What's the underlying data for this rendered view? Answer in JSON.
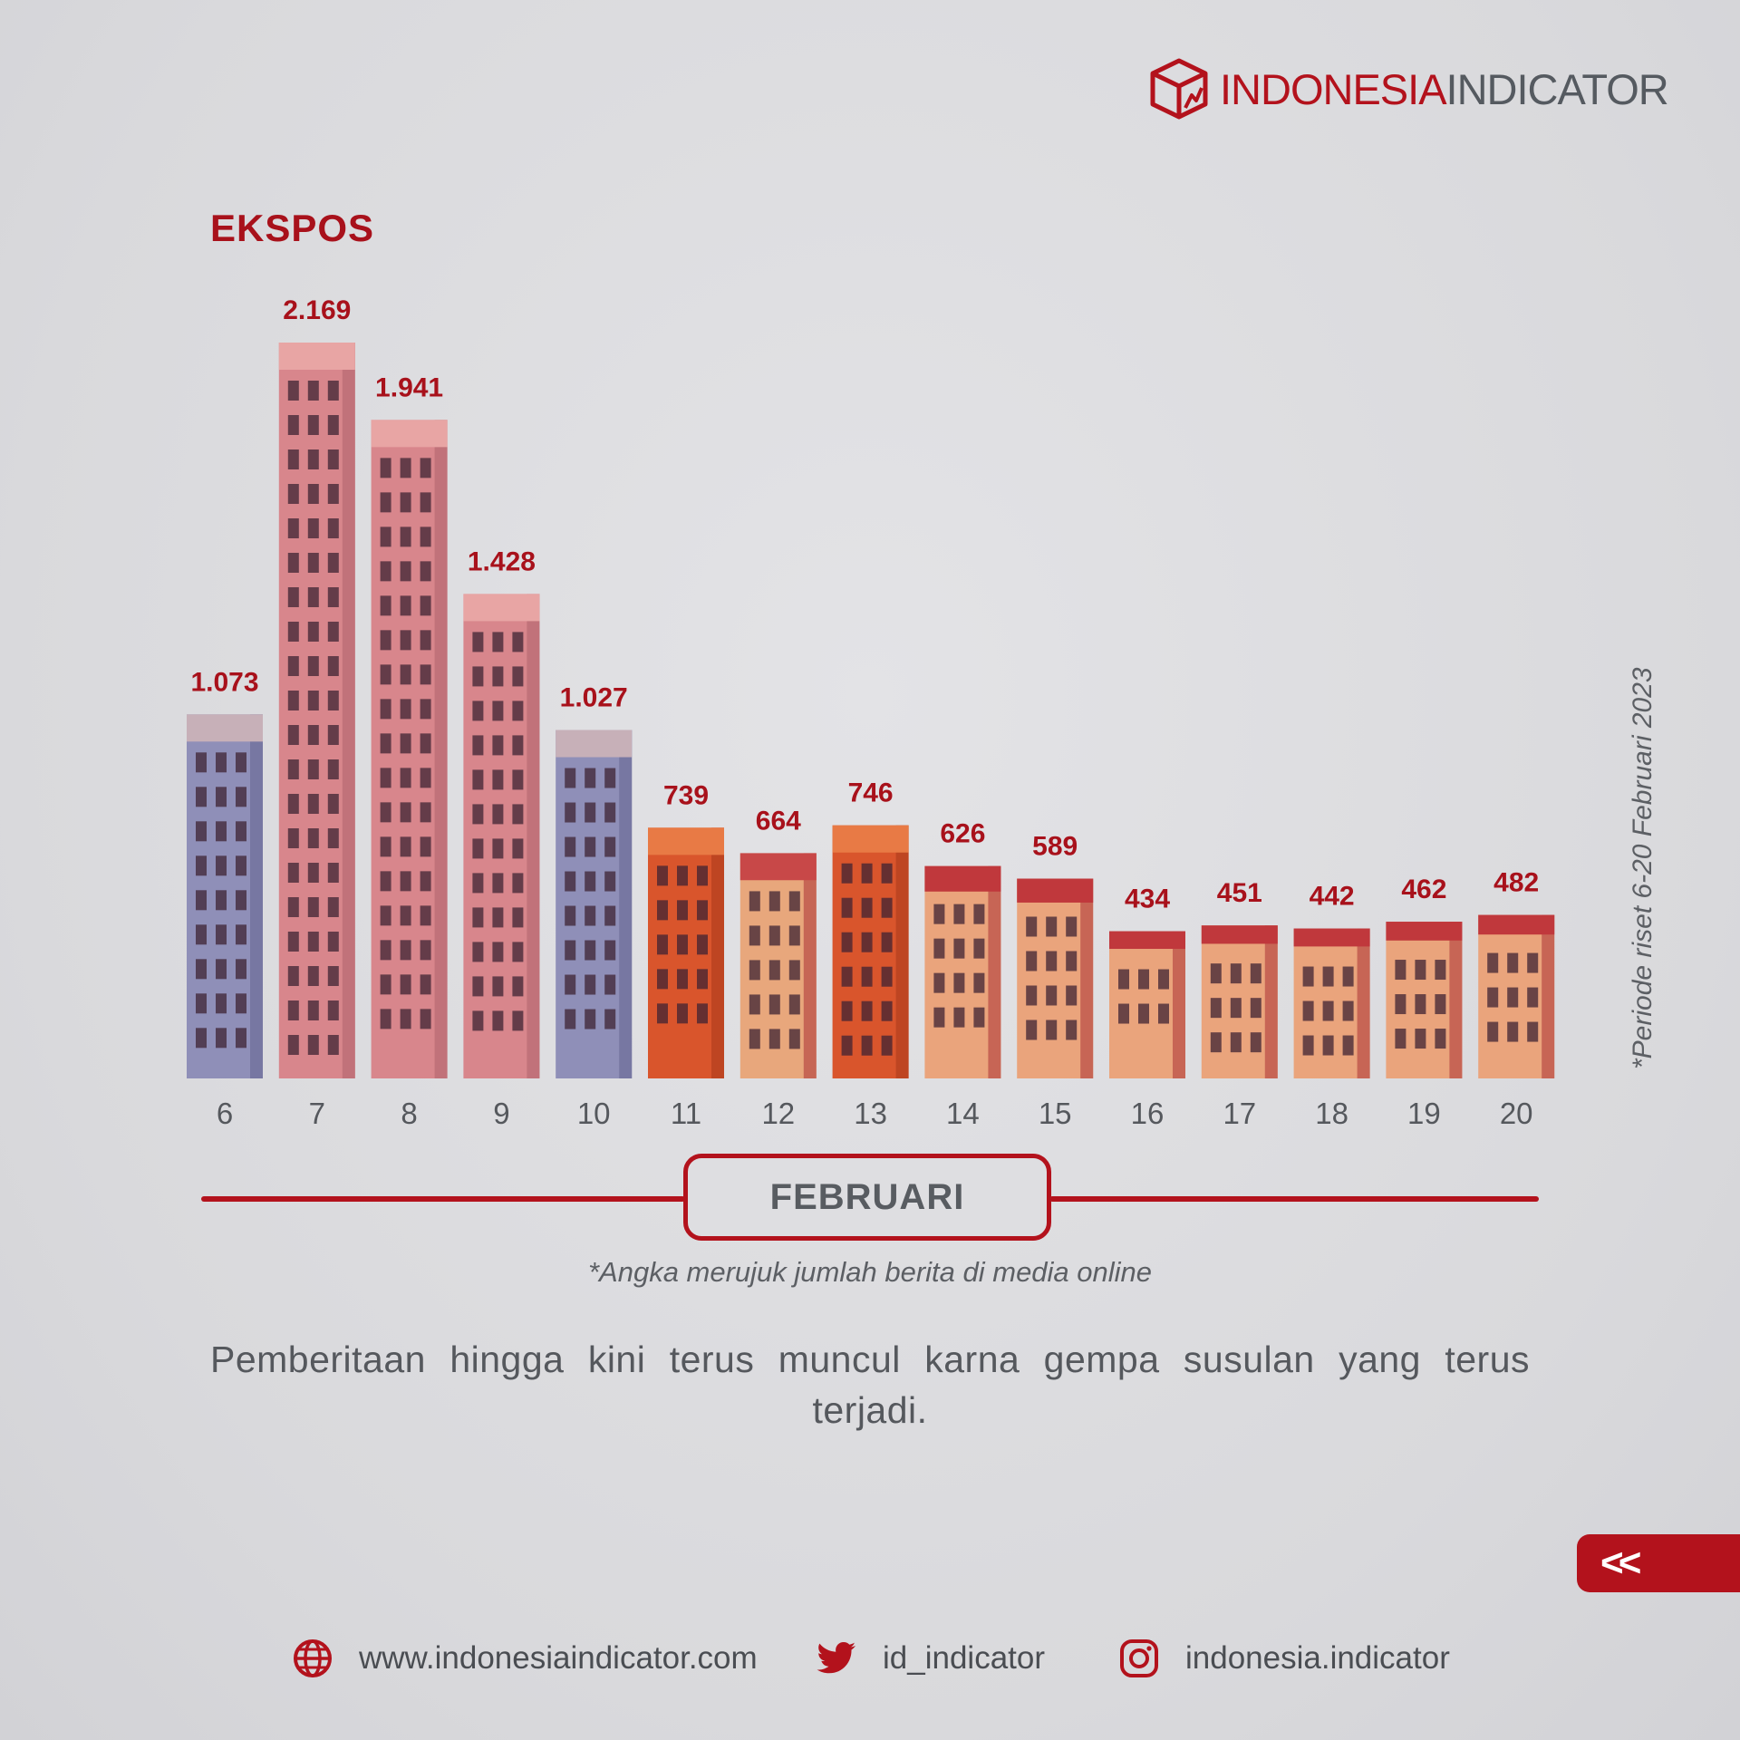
{
  "brand": {
    "part1": "INDONESIA",
    "part2": "INDICATOR"
  },
  "colors": {
    "accent": "#b3121c",
    "text": "#55585d"
  },
  "chart_data": {
    "type": "bar",
    "title": "EKSPOS",
    "categories": [
      "6",
      "7",
      "8",
      "9",
      "10",
      "11",
      "12",
      "13",
      "14",
      "15",
      "16",
      "17",
      "18",
      "19",
      "20"
    ],
    "values": [
      1073,
      2169,
      1941,
      1428,
      1027,
      739,
      664,
      746,
      626,
      589,
      434,
      451,
      442,
      462,
      482
    ],
    "value_labels": [
      "1.073",
      "2.169",
      "1.941",
      "1.428",
      "1.027",
      "739",
      "664",
      "746",
      "626",
      "589",
      "434",
      "451",
      "442",
      "462",
      "482"
    ],
    "xlabel": "FEBRUARI",
    "ylabel": "",
    "grid": false,
    "legend": "none"
  },
  "period_note": "*Periode riset 6-20 Februari 2023",
  "source_note": "*Angka merujuk jumlah berita di media online",
  "description": "Pemberitaan hingga kini terus muncul karna gempa susulan yang terus terjadi.",
  "nav": {
    "back_label": "<<"
  },
  "footer": {
    "website": "www.indonesiaindicator.com",
    "twitter": "id_indicator",
    "instagram": "indonesia.indicator",
    "icons": [
      "globe-icon",
      "twitter-bird-icon",
      "instagram-icon"
    ]
  }
}
